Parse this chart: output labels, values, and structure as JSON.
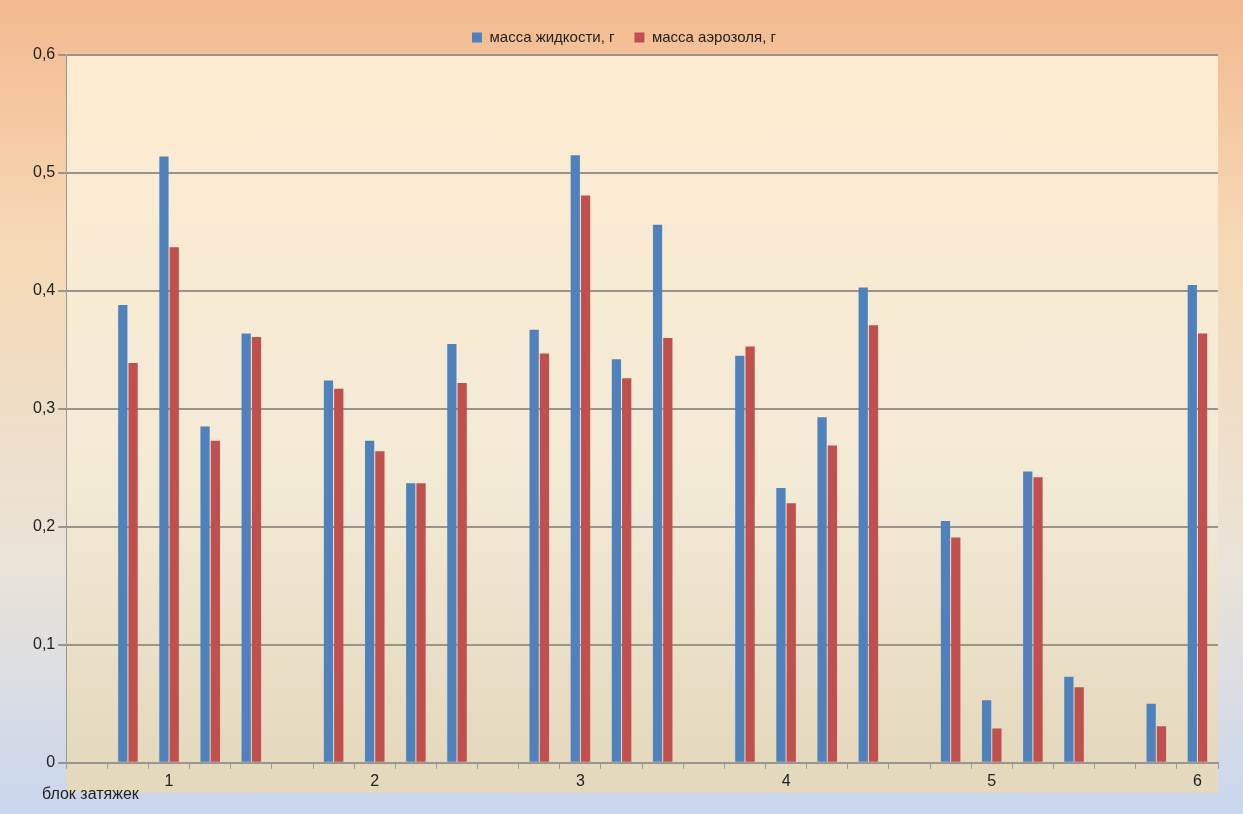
{
  "chart_data": {
    "type": "bar",
    "xlabel": "блок затяжек",
    "categories": [
      null,
      null,
      "1",
      null,
      null,
      null,
      null,
      "2",
      null,
      null,
      null,
      null,
      "3",
      null,
      null,
      null,
      null,
      "4",
      null,
      null,
      null,
      null,
      "5",
      null,
      null,
      null,
      null,
      "6"
    ],
    "series": [
      {
        "name": "масса жидкости, г",
        "color": "#4f81bd",
        "values": [
          null,
          0.388,
          0.514,
          0.285,
          0.364,
          null,
          0.324,
          0.273,
          0.237,
          0.355,
          null,
          0.367,
          0.515,
          0.342,
          0.456,
          null,
          0.345,
          0.233,
          0.293,
          0.403,
          null,
          0.205,
          0.053,
          0.247,
          0.073,
          null,
          0.05,
          0.405
        ]
      },
      {
        "name": "масса аэрозоля, г",
        "color": "#c0504d",
        "values": [
          null,
          0.339,
          0.437,
          0.273,
          0.361,
          null,
          0.317,
          0.264,
          0.237,
          0.322,
          null,
          0.347,
          0.481,
          0.326,
          0.36,
          null,
          0.353,
          0.22,
          0.269,
          0.371,
          null,
          0.191,
          0.029,
          0.242,
          0.064,
          null,
          0.031,
          0.364
        ]
      }
    ],
    "ylim": [
      0,
      0.6
    ],
    "yticks": [
      0,
      {
        "value": 0.1,
        "label": "0,1"
      },
      {
        "value": 0.2,
        "label": "0,2"
      },
      {
        "value": 0.3,
        "label": "0,3"
      },
      {
        "value": 0.4,
        "label": "0,4"
      },
      {
        "value": 0.5,
        "label": "0,5"
      },
      {
        "value": 0.6,
        "label": "0,6"
      }
    ],
    "grid": "y",
    "legend": "top"
  }
}
